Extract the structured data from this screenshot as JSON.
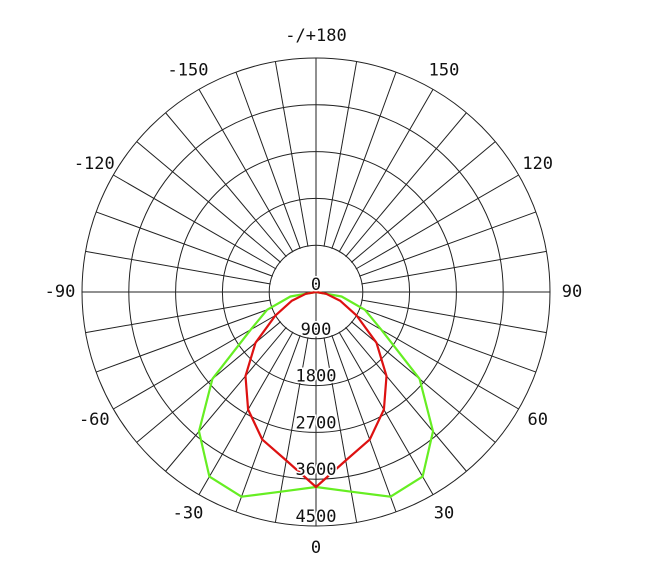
{
  "chart_data": {
    "type": "polar",
    "theta": [
      -90,
      -80,
      -70,
      -60,
      -50,
      -40,
      -30,
      -20,
      -10,
      0,
      10,
      20,
      30,
      40,
      50,
      60,
      70,
      80,
      90
    ],
    "series": [
      {
        "color": "#66ee22",
        "values": [
          0,
          500,
          1000,
          1450,
          2600,
          3500,
          4100,
          4190,
          3900,
          3750,
          3900,
          4190,
          4100,
          3500,
          2600,
          1450,
          1000,
          500,
          0
        ]
      },
      {
        "color": "#dd1111",
        "values": [
          0,
          200,
          500,
          900,
          1520,
          2110,
          2610,
          3020,
          3290,
          3750,
          3290,
          3020,
          2610,
          2110,
          1520,
          900,
          500,
          200,
          0
        ]
      }
    ],
    "rlim": [
      0,
      4500
    ],
    "rticks": [
      0,
      900,
      1800,
      2700,
      3600,
      4500
    ],
    "thetaticks": [
      {
        "value": 180,
        "label": "-/+180"
      },
      -150,
      150,
      -120,
      120,
      -90,
      90,
      -60,
      60,
      -30,
      30,
      0
    ]
  }
}
